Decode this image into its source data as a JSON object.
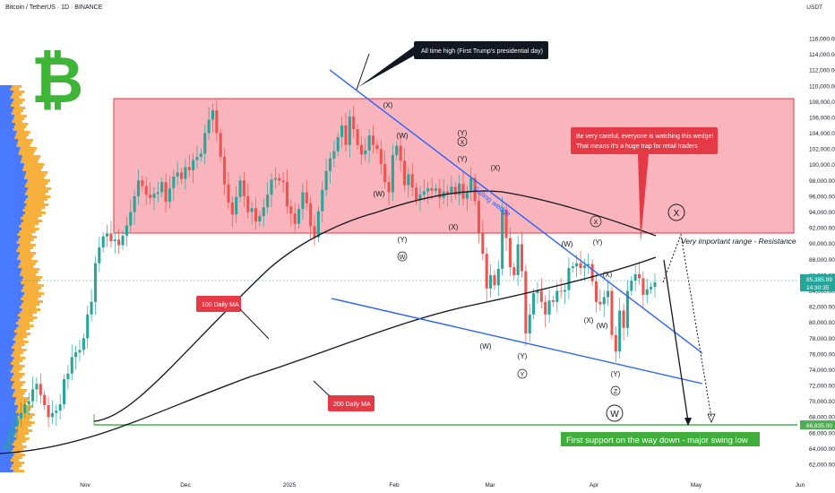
{
  "header": {
    "title": "Bitcoin / TetherUS · 1D · BINANCE",
    "currency": "USDT"
  },
  "logo": {
    "symbol": "₿",
    "color": "#3fb538"
  },
  "annotations": {
    "ath": "All time high (First Trump's presidential day)",
    "warning_line1": "Be very careful, everyone is watching this wedge!",
    "warning_line2": "That means it's a huge trap for retail traders",
    "resistance": "Very important range - Resistance",
    "support": "First support on the way down - major swing low",
    "ma100": "100 Daily MA",
    "ma200": "200 Daily MA",
    "wedge": "Falling wedge"
  },
  "price_labels": {
    "current": "85,385.99",
    "countdown": "14:30:35",
    "support_level": "66,835.00"
  },
  "colors": {
    "up": "#26a69a",
    "down": "#ef5350",
    "band": "#f7a1ab",
    "support": "#4caf50",
    "wedge": "#2962ff",
    "callout": "#e53945",
    "volume_up": "#2962ff",
    "volume_down": "#f7a21b"
  },
  "chart_data": {
    "type": "candlestick",
    "symbol": "BTC/USDT",
    "interval": "1D",
    "ylim": [
      61000,
      118000
    ],
    "y_ticks": [
      "62,000.00",
      "64,000.00",
      "66,000.00",
      "68,000.00",
      "70,000.00",
      "72,000.00",
      "74,000.00",
      "76,000.00",
      "78,000.00",
      "80,000.00",
      "82,000.00",
      "84,000.00",
      "86,000.00",
      "88,000.00",
      "90,000.00",
      "92,000.00",
      "94,000.00",
      "96,000.00",
      "98,000.00",
      "100,000.00",
      "102,000.00",
      "104,000.00",
      "106,000.00",
      "108,000.00",
      "110,000.00",
      "112,000.00",
      "114,000.00",
      "116,000.00"
    ],
    "x_ticks": [
      "Nov",
      "Dec",
      "2025",
      "Feb",
      "Mar",
      "Apr",
      "May",
      "Jun"
    ],
    "resistance_range": [
      91000,
      108300
    ],
    "support_level": 66835,
    "current_price": 85385.99,
    "closes": [
      64500,
      65500,
      66800,
      67800,
      68500,
      69600,
      70000,
      71500,
      72200,
      70800,
      69500,
      68000,
      68500,
      68800,
      69600,
      72800,
      73500,
      75600,
      76200,
      76500,
      78000,
      81000,
      82600,
      87500,
      89500,
      90900,
      91300,
      90300,
      90500,
      89800,
      91000,
      92300,
      94000,
      96000,
      98000,
      97300,
      96200,
      95800,
      96300,
      96500,
      97800,
      95300,
      97000,
      98500,
      99000,
      98200,
      99700,
      99300,
      100600,
      101000,
      101400,
      104000,
      105700,
      106900,
      104000,
      101000,
      97500,
      95200,
      93700,
      95900,
      98000,
      96000,
      94000,
      94500,
      92800,
      93500,
      94600,
      96200,
      98100,
      98300,
      98000,
      97800,
      94700,
      93800,
      92500,
      94400,
      96500,
      95100,
      92200,
      90800,
      94100,
      96800,
      99200,
      100800,
      101700,
      103500,
      105000,
      102500,
      106100,
      104500,
      102500,
      101300,
      101800,
      103700,
      102500,
      102000,
      100100,
      97800,
      96500,
      101200,
      102400,
      100500,
      97400,
      98800,
      97100,
      95500,
      96200,
      96600,
      97000,
      96700,
      97000,
      95800,
      96600,
      96300,
      97200,
      96200,
      97600,
      95700,
      96500,
      98300,
      95400,
      91400,
      88700,
      84300,
      86000,
      84700,
      86800,
      94300,
      90700,
      87000,
      86000,
      89900,
      86500,
      78600,
      81000,
      83700,
      84000,
      82600,
      81000,
      82800,
      82600,
      84000,
      83900,
      84100,
      86900,
      87100,
      87500,
      86900,
      87200,
      87400,
      85200,
      82600,
      82300,
      83200,
      84000,
      78400,
      76300,
      81500,
      79300,
      84000,
      85300,
      86100,
      85600,
      83500,
      84200,
      84500,
      85100
    ]
  }
}
